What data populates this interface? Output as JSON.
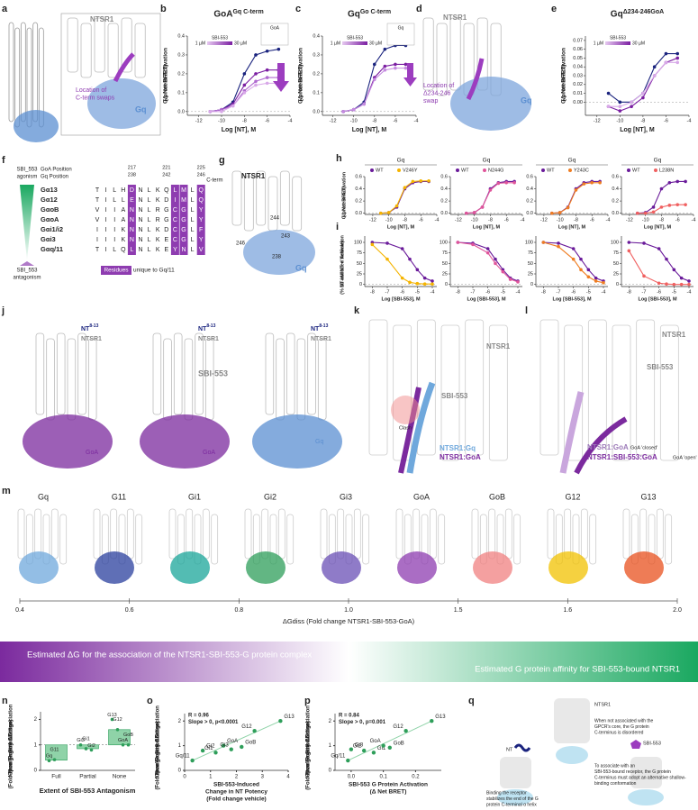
{
  "panel_labels": [
    "a",
    "b",
    "c",
    "d",
    "e",
    "f",
    "g",
    "h",
    "i",
    "j",
    "k",
    "l",
    "m",
    "n",
    "o",
    "p",
    "q"
  ],
  "a": {
    "protein": "NTSR1",
    "annotation": [
      "Location of",
      "C-term swaps"
    ],
    "gprotein": "Gq"
  },
  "b": {
    "type": "line",
    "title": "GoA",
    "title_sup": "Gq C-term",
    "inset_label": "GoA",
    "ylabel": [
      "G protein Activation",
      "(Δ Net BRET)"
    ],
    "xlabel": "Log [NT], M",
    "legend": {
      "title": "SBI-553",
      "min": "1 µM",
      "max": "30 µM"
    },
    "x": [
      -11,
      -10,
      -9,
      -8,
      -7,
      -6,
      -5
    ],
    "xlim": [
      -13,
      -4
    ],
    "xticks": [
      -12,
      -10,
      -8,
      -6,
      -4
    ],
    "ylim": [
      -0.02,
      0.4
    ],
    "yticks": [
      {
        "value": 0,
        "label": "0.0"
      },
      0.1,
      0.2,
      0.3,
      0.4
    ],
    "series": [
      {
        "color": "#1a237e",
        "values": [
          0,
          0.01,
          0.05,
          0.2,
          0.3,
          0.32,
          0.33
        ]
      },
      {
        "color": "#7b1fa2",
        "values": [
          0,
          0.01,
          0.04,
          0.14,
          0.2,
          0.22,
          0.22
        ]
      },
      {
        "color": "#b06ad0",
        "values": [
          0,
          0.01,
          0.03,
          0.11,
          0.16,
          0.18,
          0.18
        ]
      },
      {
        "color": "#d8a8e8",
        "values": [
          0,
          0,
          0.03,
          0.1,
          0.14,
          0.15,
          0.15
        ]
      }
    ]
  },
  "c": {
    "type": "line",
    "title": "Gq",
    "title_sup": "Go C-term",
    "inset_label": "Gq",
    "ylabel": [
      "G protein Activation",
      "(Δ Net BRET)"
    ],
    "xlabel": "Log [NT], M",
    "legend": {
      "title": "SBI-553",
      "min": "1 µM",
      "max": "30 µM"
    },
    "x": [
      -11,
      -10,
      -9,
      -8,
      -7,
      -6,
      -5
    ],
    "xlim": [
      -13,
      -4
    ],
    "xticks": [
      -12,
      -10,
      -8,
      -6,
      -4
    ],
    "ylim": [
      -0.02,
      0.4
    ],
    "yticks": [
      {
        "value": 0,
        "label": "0.0"
      },
      0.1,
      0.2,
      0.3,
      0.4
    ],
    "series": [
      {
        "color": "#1a237e",
        "values": [
          0,
          0.01,
          0.05,
          0.25,
          0.33,
          0.35,
          0.35
        ]
      },
      {
        "color": "#7b1fa2",
        "values": [
          0,
          0.01,
          0.04,
          0.18,
          0.24,
          0.25,
          0.25
        ]
      },
      {
        "color": "#c58be0",
        "values": [
          0,
          0.01,
          0.04,
          0.17,
          0.22,
          0.23,
          0.23
        ]
      }
    ]
  },
  "d": {
    "protein": "NTSR1",
    "annotation": [
      "Location of",
      "Δ234-246",
      "swap"
    ],
    "gprotein": "Gq"
  },
  "e": {
    "type": "line",
    "title": "Gq",
    "title_sup": "Δ234-246GoA",
    "ylabel": [
      "G protein Activation",
      "(Δ Net BRET)"
    ],
    "xlabel": "Log [NT], M",
    "legend": {
      "title": "SBI-553",
      "min": "1 µM",
      "max": "30 µM"
    },
    "x": [
      -11,
      -10,
      -9,
      -8,
      -7,
      -6,
      -5
    ],
    "xlim": [
      -13,
      -4
    ],
    "xticks": [
      -12,
      -10,
      -8,
      -6,
      -4
    ],
    "ylim": [
      -0.015,
      0.075
    ],
    "yticks": [
      {
        "value": 0,
        "label": "0.00"
      },
      0.01,
      0.02,
      0.03,
      0.04,
      0.05,
      0.06,
      0.07
    ],
    "series": [
      {
        "color": "#1a237e",
        "values": [
          0.01,
          0,
          0,
          0.01,
          0.04,
          0.055,
          0.055
        ]
      },
      {
        "color": "#7b1fa2",
        "values": [
          -0.005,
          -0.01,
          -0.005,
          0.005,
          0.03,
          0.045,
          0.05
        ]
      },
      {
        "color": "#d8a8e8",
        "values": [
          -0.005,
          -0.005,
          0,
          0.01,
          0.03,
          0.045,
          0.045
        ]
      }
    ]
  },
  "f": {
    "gradient_top": "SBI_553",
    "gradient_top2": "agonism",
    "gradient_bottom": "SBI_553",
    "gradient_bottom2": "antagonism",
    "pos_goa": "GoA Position",
    "pos_gq": "Gq Position",
    "numbers": [
      {
        "goa": "217",
        "gq": "238"
      },
      {
        "goa": "221",
        "gq": "242"
      },
      {
        "goa": "225",
        "gq": "246"
      }
    ],
    "cterm": "C-term",
    "rows": [
      {
        "name": "Gα13",
        "seq": [
          "T",
          "I",
          "L",
          "H",
          "D",
          "N",
          "L",
          "K",
          "Q",
          "L",
          "M",
          "L",
          "Q"
        ]
      },
      {
        "name": "Gα12",
        "seq": [
          "T",
          "I",
          "L",
          "L",
          "E",
          "N",
          "L",
          "K",
          "D",
          "I",
          "M",
          "L",
          "Q"
        ]
      },
      {
        "name": "GαoB",
        "seq": [
          "V",
          "I",
          "I",
          "A",
          "N",
          "N",
          "L",
          "R",
          "G",
          "C",
          "G",
          "L",
          "Y"
        ]
      },
      {
        "name": "GαoA",
        "seq": [
          "V",
          "I",
          "I",
          "A",
          "N",
          "N",
          "L",
          "R",
          "G",
          "C",
          "G",
          "L",
          "Y"
        ]
      },
      {
        "name": "Gαi1/i2",
        "seq": [
          "I",
          "I",
          "I",
          "K",
          "N",
          "N",
          "L",
          "K",
          "D",
          "C",
          "G",
          "L",
          "F"
        ]
      },
      {
        "name": "Gαi3",
        "seq": [
          "I",
          "I",
          "I",
          "K",
          "N",
          "N",
          "L",
          "K",
          "E",
          "C",
          "G",
          "L",
          "Y"
        ]
      },
      {
        "name": "Gαq/11",
        "seq": [
          "T",
          "I",
          "L",
          "Q",
          "L",
          "N",
          "L",
          "K",
          "E",
          "Y",
          "N",
          "L",
          "V"
        ]
      }
    ],
    "key": "Residues",
    "key_text": "unique to Gq/11"
  },
  "g": {
    "protein": "NTSR1",
    "residues": [
      "244",
      "243",
      "246",
      "238"
    ],
    "gprotein": "Gq"
  },
  "h": {
    "type": "line",
    "ylabel": [
      "G protein Activation",
      "(Δ Net BRET)"
    ],
    "x": [
      -11,
      -10,
      -9,
      -8,
      -7,
      -6,
      -5
    ],
    "xlim": [
      -13,
      -4
    ],
    "xticks": [
      -12,
      -10,
      -8,
      -6,
      -4
    ],
    "ylim": [
      -0.02,
      0.6
    ],
    "yticks": [
      {
        "value": 0,
        "label": "0.0"
      },
      0.2,
      0.4,
      0.6
    ],
    "xlabel": "Log [NT], M",
    "panels": [
      {
        "header": "Gq",
        "series": [
          {
            "name": "WT",
            "color": "#6a1b9a",
            "values": [
              0,
              0.01,
              0.1,
              0.4,
              0.5,
              0.52,
              0.52
            ]
          },
          {
            "name": "V246Y",
            "color": "#f5b400",
            "values": [
              0,
              0.01,
              0.12,
              0.42,
              0.52,
              0.53,
              0.53
            ]
          }
        ]
      },
      {
        "header": "Gq",
        "series": [
          {
            "name": "WT",
            "color": "#6a1b9a",
            "values": [
              0,
              0.01,
              0.1,
              0.4,
              0.5,
              0.52,
              0.52
            ]
          },
          {
            "name": "N244G",
            "color": "#e0559a",
            "values": [
              0,
              0.01,
              0.1,
              0.38,
              0.49,
              0.5,
              0.5
            ]
          }
        ]
      },
      {
        "header": "Gq",
        "series": [
          {
            "name": "WT",
            "color": "#6a1b9a",
            "values": [
              0,
              0.01,
              0.1,
              0.4,
              0.5,
              0.52,
              0.52
            ]
          },
          {
            "name": "Y243C",
            "color": "#ef7d22",
            "values": [
              0,
              0.01,
              0.09,
              0.38,
              0.48,
              0.5,
              0.5
            ]
          }
        ]
      },
      {
        "header": "Gq",
        "series": [
          {
            "name": "WT",
            "color": "#6a1b9a",
            "values": [
              0,
              0.01,
              0.1,
              0.4,
              0.5,
              0.52,
              0.52
            ]
          },
          {
            "name": "L238N",
            "color": "#f06060",
            "values": [
              0,
              0,
              0.02,
              0.1,
              0.13,
              0.14,
              0.14
            ]
          }
        ]
      }
    ]
  },
  "i": {
    "type": "line",
    "ylabel": [
      "NT-induced Activation",
      "(% 10 nM NT + Vehicle)"
    ],
    "x": [
      -8,
      -7,
      -6,
      -5.5,
      -5,
      -4.5,
      -4
    ],
    "xlim": [
      -8.5,
      -3.7
    ],
    "xticks": [
      -8,
      -7,
      -6,
      -5,
      -4
    ],
    "ylim": [
      -5,
      115
    ],
    "yticks": [
      0,
      25,
      50,
      75,
      100
    ],
    "xlabel": "Log [SBI-553], M",
    "panels": [
      {
        "series": [
          {
            "color": "#6a1b9a",
            "values": [
              100,
              98,
              85,
              60,
              35,
              15,
              8
            ]
          },
          {
            "color": "#f5b400",
            "values": [
              95,
              60,
              15,
              5,
              2,
              1,
              1
            ]
          }
        ]
      },
      {
        "series": [
          {
            "color": "#6a1b9a",
            "values": [
              100,
              98,
              85,
              60,
              35,
              15,
              8
            ]
          },
          {
            "color": "#e0559a",
            "values": [
              100,
              95,
              75,
              50,
              30,
              12,
              6
            ]
          }
        ]
      },
      {
        "series": [
          {
            "color": "#6a1b9a",
            "values": [
              100,
              98,
              85,
              60,
              35,
              15,
              8
            ]
          },
          {
            "color": "#ef7d22",
            "values": [
              100,
              90,
              60,
              35,
              18,
              8,
              4
            ]
          }
        ]
      },
      {
        "series": [
          {
            "color": "#6a1b9a",
            "values": [
              100,
              98,
              85,
              60,
              35,
              15,
              8
            ]
          },
          {
            "color": "#f06060",
            "values": [
              80,
              20,
              3,
              1,
              0,
              0,
              0
            ]
          }
        ]
      }
    ]
  },
  "j": {
    "nt": "NT",
    "nt_sup": "8-13",
    "protein": "NTSR1",
    "ligand": "SBI-553",
    "goa": "GoA",
    "gq": "Gq"
  },
  "k": {
    "protein": "NTSR1",
    "ligand": "SBI-553",
    "clash": "Clash",
    "legend": [
      "NTSR1:Gq",
      "NTSR1:GoA"
    ]
  },
  "l": {
    "ligand": "SBI-553",
    "protein": "NTSR1",
    "legend": [
      "NTSR1:GoA",
      "NTSR1:SBI-553:GoA"
    ],
    "states": [
      "GoA 'closed'",
      "GoA 'open'"
    ]
  },
  "m": {
    "labels": [
      {
        "name": "Gq",
        "color": "#6fa8dc"
      },
      {
        "name": "G11",
        "color": "#2a3f9e"
      },
      {
        "name": "Gi1",
        "color": "#1aa59a"
      },
      {
        "name": "Gi2",
        "color": "#2e9e5a"
      },
      {
        "name": "Gi3",
        "color": "#6a4fb5"
      },
      {
        "name": "GoA",
        "color": "#8e3cb0"
      },
      {
        "name": "GoB",
        "color": "#f08080"
      },
      {
        "name": "G12",
        "color": "#f2c200"
      },
      {
        "name": "G13",
        "color": "#e8501e"
      }
    ],
    "axis_label": "ΔGdiss (Fold change NTSR1-SBI-553-GoA)",
    "ticks": [
      0.4,
      0.6,
      0.8,
      {
        "value": 1,
        "label": "1.0"
      },
      1.5,
      1.6,
      {
        "value": 2,
        "label": "2.0"
      }
    ],
    "banner_left": "Estimated ΔG for the association of the NTSR1-SBI-553-G protein complex",
    "banner_right": "Estimated G protein affinity for SBI-553-bound NTSR1"
  },
  "n": {
    "type": "bar",
    "ylabel": [
      "'Open' Position Dissociation",
      "Free Engery Change",
      "(Fold-change GoA ΔGdiss)"
    ],
    "xlabel": "Extent of SBI-553 Antagonism",
    "ylim": [
      0,
      2.3
    ],
    "yticks": [
      0,
      1,
      2
    ],
    "color": "#8fd3a8",
    "groups": [
      {
        "name": "Full",
        "value": 0.4,
        "points": [
          {
            "name": "Gq",
            "value": 0.38
          },
          {
            "name": "G11",
            "value": 0.42
          }
        ]
      },
      {
        "name": "Partial",
        "value": 0.85,
        "points": [
          {
            "name": "Gi3",
            "value": 1.0
          },
          {
            "name": "Gi1",
            "value": 0.85
          },
          {
            "name": "Gi2",
            "value": 0.8
          }
        ]
      },
      {
        "name": "None",
        "value": 1.6,
        "points": [
          {
            "name": "G13",
            "value": 2.0
          },
          {
            "name": "G12",
            "value": 1.6
          },
          {
            "name": "GoA",
            "value": 1.0
          },
          {
            "name": "GoB",
            "value": 1.0
          }
        ]
      }
    ]
  },
  "o": {
    "type": "scatter",
    "ylabel": [
      "'Open' Position Dissociation",
      "Free Engery Change",
      "(Fold change GoA ΔGdiss)"
    ],
    "xlabel": [
      "SBI-553-Induced",
      "Change in NT Potency",
      "(Fold change vehicle)"
    ],
    "stats": [
      "R = 0.96",
      "Slope > 0, p<0.0001"
    ],
    "xlim": [
      0,
      4
    ],
    "xticks": [
      0,
      1,
      2,
      3,
      4
    ],
    "ylim": [
      0,
      2.3
    ],
    "yticks": [
      0,
      1,
      2
    ],
    "color": "#2e9e5a",
    "points": [
      {
        "name": "Gq/11",
        "x": 0.3,
        "y": 0.4
      },
      {
        "name": "Gi2",
        "x": 0.7,
        "y": 0.8
      },
      {
        "name": "Gi1",
        "x": 1.2,
        "y": 0.72
      },
      {
        "name": "GoA",
        "x": 1.5,
        "y": 1.0
      },
      {
        "name": "Gi3",
        "x": 1.8,
        "y": 0.85
      },
      {
        "name": "GoB",
        "x": 2.2,
        "y": 0.95
      },
      {
        "name": "G12",
        "x": 2.7,
        "y": 1.6
      },
      {
        "name": "G13",
        "x": 3.7,
        "y": 2.0
      }
    ]
  },
  "p": {
    "type": "scatter",
    "ylabel": [
      "'Open' Position Dissociation",
      "Free Engery Change",
      "(Fold-change GoA ΔGdiss)"
    ],
    "xlabel": [
      "SBI-553 G Protein Activation",
      "(Δ Net BRET)"
    ],
    "stats": [
      "R = 0.84",
      "Slope > 0, p=0.001"
    ],
    "xlim": [
      -0.05,
      0.28
    ],
    "xticks": [
      {
        "value": 0,
        "label": "0.0"
      },
      0.1,
      0.2
    ],
    "ylim": [
      0,
      2.3
    ],
    "yticks": [
      0,
      1,
      2
    ],
    "color": "#2e9e5a",
    "points": [
      {
        "name": "Gq/11",
        "x": -0.01,
        "y": 0.4
      },
      {
        "name": "Gi3",
        "x": 0.0,
        "y": 0.85
      },
      {
        "name": "Gi2",
        "x": 0.04,
        "y": 0.8
      },
      {
        "name": "Gi1",
        "x": 0.07,
        "y": 0.72
      },
      {
        "name": "GoA",
        "x": 0.1,
        "y": 1.0
      },
      {
        "name": "GoB",
        "x": 0.12,
        "y": 0.92
      },
      {
        "name": "G12",
        "x": 0.17,
        "y": 1.6
      },
      {
        "name": "G13",
        "x": 0.25,
        "y": 2.0
      }
    ]
  },
  "q": {
    "protein": "NTSR1",
    "note1": [
      "When not associated with the",
      "GPCR's core, the G protein",
      "C-terminus is disordered"
    ],
    "nt": "NT",
    "ligand": "SBI-553",
    "note2": [
      "Binding the receptor",
      "stabilizes the end of the G",
      "protein C-terminal α helix"
    ],
    "note3": [
      "To associate with an",
      "SBI-553-bound receptor, the G protein",
      "C-terminus must adopt an alternative shallow-",
      "binding conformation"
    ]
  }
}
